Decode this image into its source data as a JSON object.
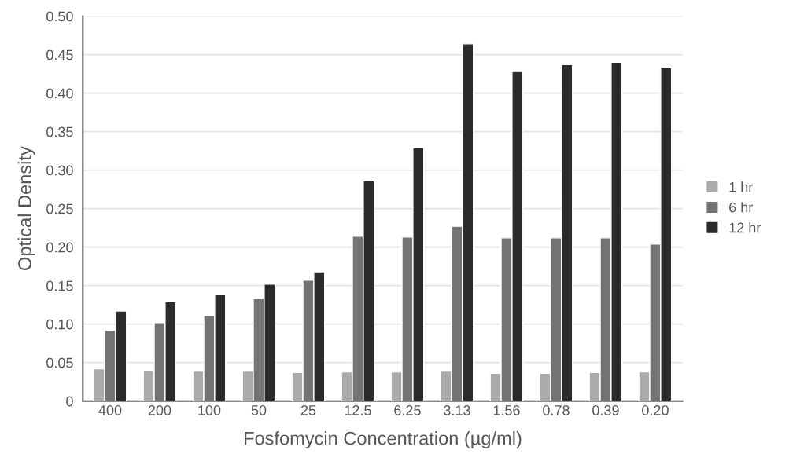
{
  "chart_data": {
    "type": "bar",
    "xlabel": "Fosfomycin Concentration (µg/ml)",
    "ylabel": "Optical Density",
    "categories": [
      "400",
      "200",
      "100",
      "50",
      "25",
      "12.5",
      "6.25",
      "3.13",
      "1.56",
      "0.78",
      "0.39",
      "0.20"
    ],
    "series": [
      {
        "name": "1 hr",
        "color": "#aaaaaa",
        "values": [
          0.042,
          0.04,
          0.039,
          0.039,
          0.037,
          0.038,
          0.038,
          0.039,
          0.036,
          0.036,
          0.037,
          0.038
        ]
      },
      {
        "name": "6 hr",
        "color": "#737373",
        "values": [
          0.092,
          0.102,
          0.111,
          0.133,
          0.157,
          0.214,
          0.213,
          0.227,
          0.212,
          0.212,
          0.212,
          0.204
        ]
      },
      {
        "name": "12 hr",
        "color": "#2b2b2b",
        "values": [
          0.117,
          0.129,
          0.138,
          0.152,
          0.168,
          0.286,
          0.329,
          0.464,
          0.428,
          0.437,
          0.44,
          0.433
        ]
      }
    ],
    "ylim": [
      0,
      0.5
    ],
    "yticks": [
      0,
      0.05,
      {
        "value": 0.1,
        "label": "0.10"
      },
      0.15,
      {
        "value": 0.2,
        "label": "0.20"
      },
      0.25,
      {
        "value": 0.3,
        "label": "0.30"
      },
      0.35,
      {
        "value": 0.4,
        "label": "0.40"
      },
      0.45,
      {
        "value": 0.5,
        "label": "0.50"
      }
    ],
    "grid": "y",
    "legend": "right"
  }
}
